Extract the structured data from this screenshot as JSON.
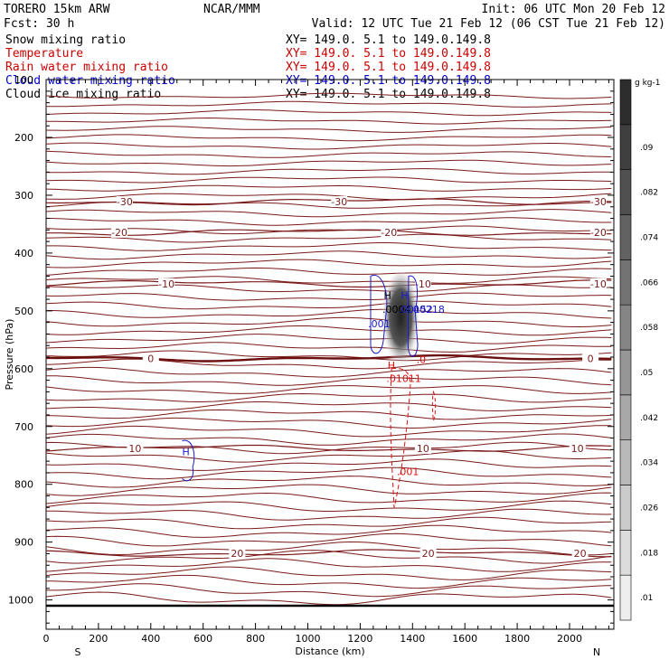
{
  "header": {
    "model": "TORERO  15km ARW",
    "center": "NCAR/MMM",
    "init": "Init: 06 UTC Mon 20 Feb 12",
    "fcst": "Fcst:    30 h",
    "valid": "Valid: 12 UTC Tue 21 Feb 12 (06 CST Tue 21 Feb 12)"
  },
  "legend": [
    {
      "name": "Snow mixing ratio",
      "xy": "XY= 149.0.  5.1 to 149.0.149.8",
      "color": "#000000"
    },
    {
      "name": "Temperature",
      "xy": "XY= 149.0.  5.1 to 149.0.149.8",
      "color": "#cc0000"
    },
    {
      "name": "Rain water mixing ratio",
      "xy": "XY= 149.0.  5.1 to 149.0.149.8",
      "color": "#cc0000"
    },
    {
      "name": "Cloud water mixing ratio",
      "xy": "XY= 149.0.  5.1 to 149.0.149.8",
      "color": "#0000cc"
    },
    {
      "name": "Cloud ice mixing ratio",
      "xy": "XY= 149.0.  5.1 to 149.0.149.8",
      "color": "#000000"
    }
  ],
  "chart_data": {
    "type": "cross-section",
    "xlabel": "Distance (km)",
    "ylabel": "Pressure (hPa)",
    "xlim": [
      0,
      2170
    ],
    "ylim": [
      1050,
      100
    ],
    "xticks": [
      0,
      200,
      400,
      600,
      800,
      1000,
      1200,
      1400,
      1600,
      1800,
      2000
    ],
    "yticks": [
      100,
      200,
      300,
      400,
      500,
      600,
      700,
      800,
      900,
      1000
    ],
    "direction_left": "S",
    "direction_right": "N",
    "colorbar": {
      "units": "g kg-1",
      "ticks": [
        ".01",
        ".018",
        ".026",
        ".034",
        ".042",
        ".05",
        ".058",
        ".066",
        ".074",
        ".082",
        ".09"
      ]
    },
    "temperature_levels": [
      {
        "label": "-30",
        "p": 311,
        "label_x": [
          300,
          1120,
          2110
        ]
      },
      {
        "label": "-20",
        "p": 364,
        "label_x": [
          280,
          1310,
          2110
        ]
      },
      {
        "label": "-10",
        "p": 453,
        "label_x": [
          460,
          1440,
          2110
        ]
      },
      {
        "label": "0",
        "p": 582,
        "label_x": [
          400,
          2080
        ],
        "bold": true
      },
      {
        "label": "10",
        "p": 738,
        "label_x": [
          340,
          1440,
          2030
        ]
      },
      {
        "label": "20",
        "p": 919,
        "label_x": [
          730,
          1460,
          2040
        ]
      }
    ],
    "surface_pressure": 1010,
    "cloud_water_labels": [
      ".001",
      ".0004",
      ".00152",
      ".00218"
    ],
    "rain_labels": [
      ".01011",
      ".0",
      ".001"
    ],
    "extrema": [
      "H",
      "H",
      "H",
      "H"
    ]
  }
}
